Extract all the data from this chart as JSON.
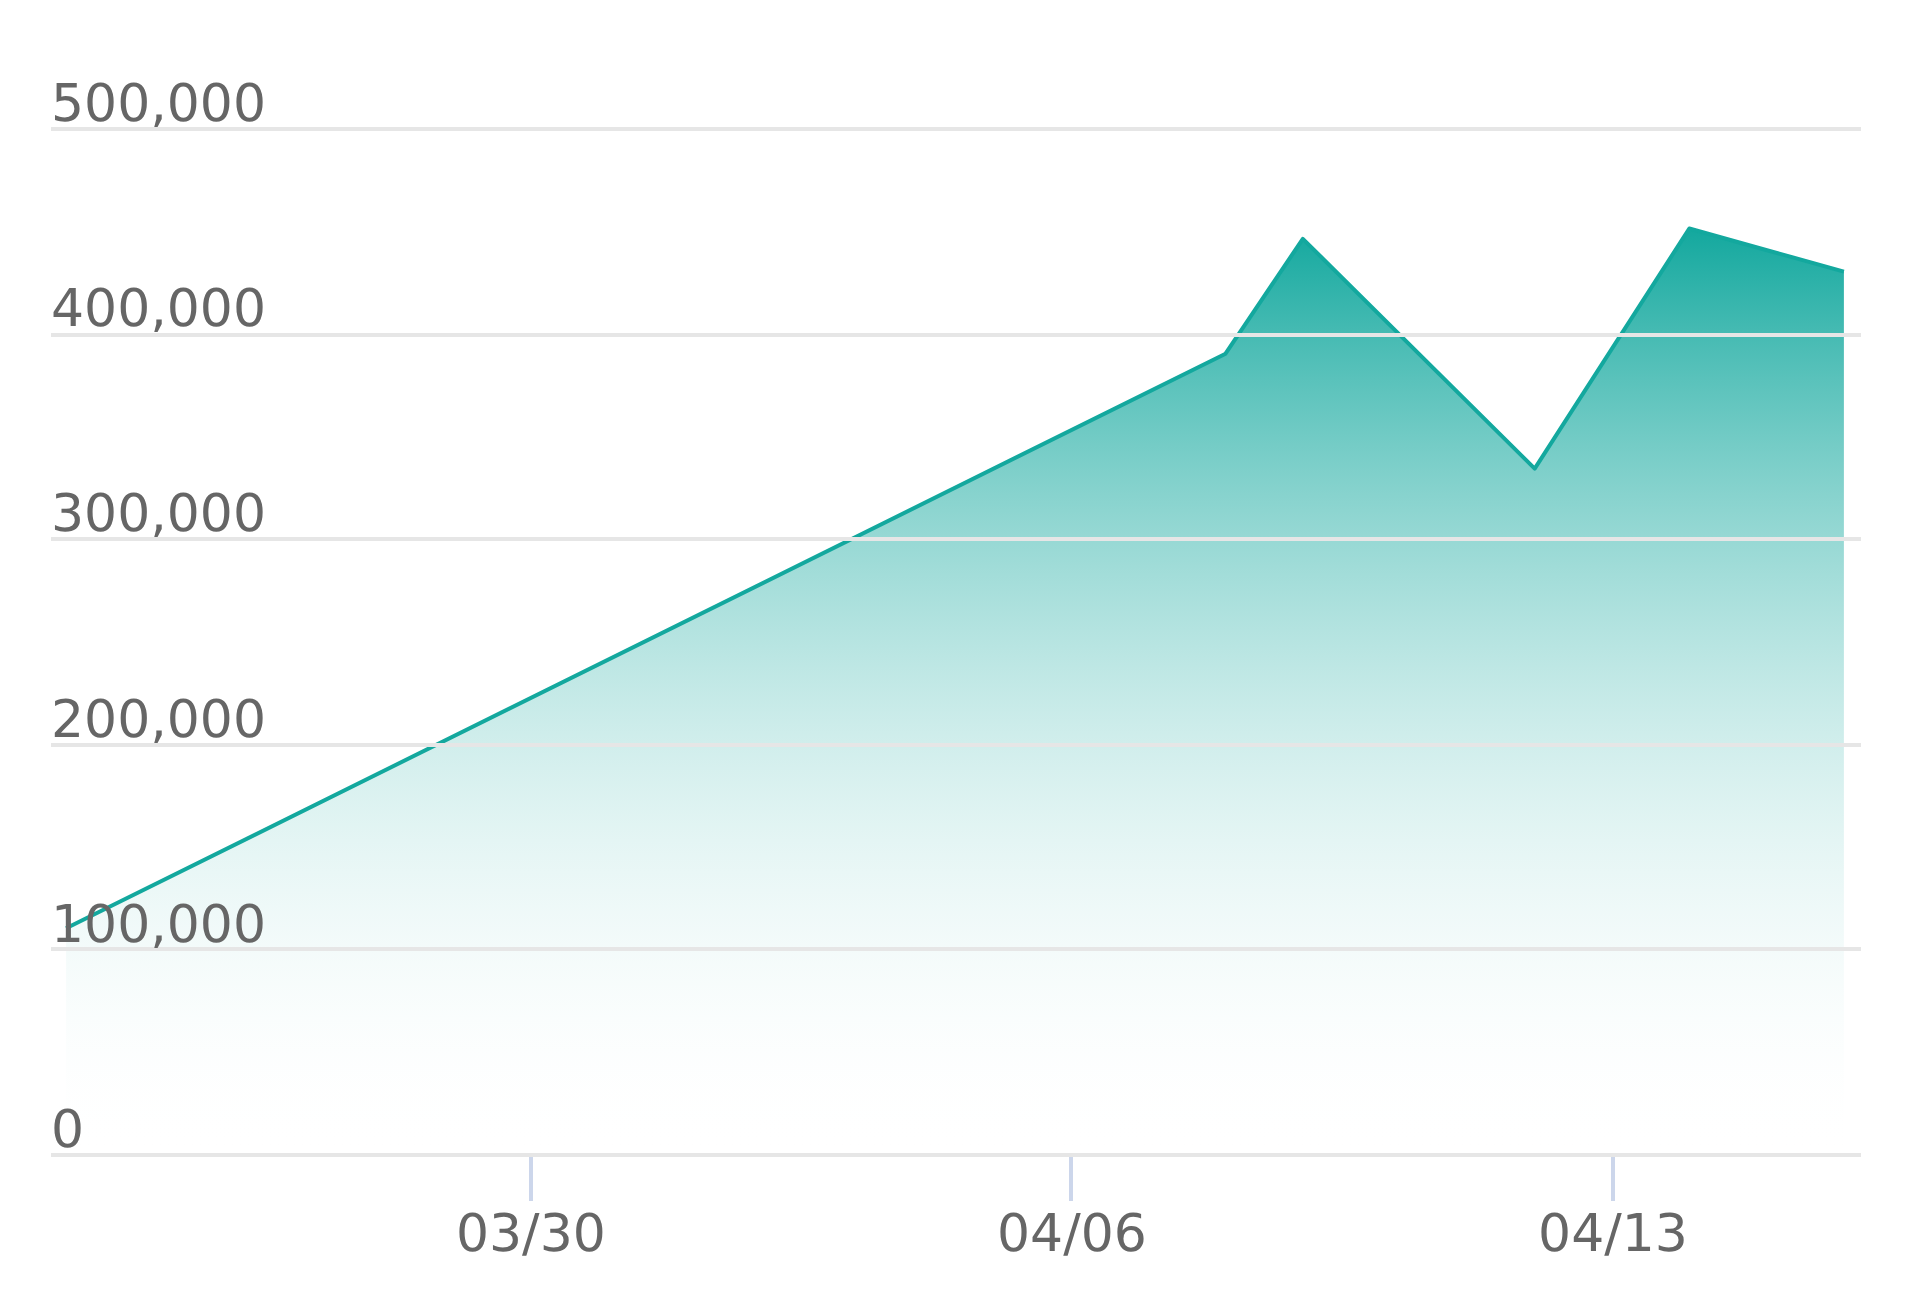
{
  "chart_data": {
    "type": "area",
    "x": [
      "--03-24",
      "--04-08",
      "--04-09",
      "--04-12",
      "--04-14",
      "--04-16"
    ],
    "series": [
      {
        "color": "#13a89e",
        "values": [
          110000,
          390000,
          446000,
          334000,
          451000,
          430000
        ]
      }
    ],
    "xlim": [
      "--03-23T19:00",
      "--04-16T05:00"
    ],
    "xticks": [
      {
        "value": "--03-30",
        "label": "03/30"
      },
      {
        "value": "--04-06",
        "label": "04/06"
      },
      {
        "value": "--04-13",
        "label": "04/13"
      }
    ],
    "ylim": [
      0,
      500000
    ],
    "yticks": [
      0,
      {
        "value": 100000,
        "label": "100,000"
      },
      {
        "value": 200000,
        "label": "200,000"
      },
      {
        "value": 300000,
        "label": "300,000"
      },
      {
        "value": 400000,
        "label": "400,000"
      },
      {
        "value": 500000,
        "label": "500,000"
      }
    ],
    "grid": "y"
  }
}
